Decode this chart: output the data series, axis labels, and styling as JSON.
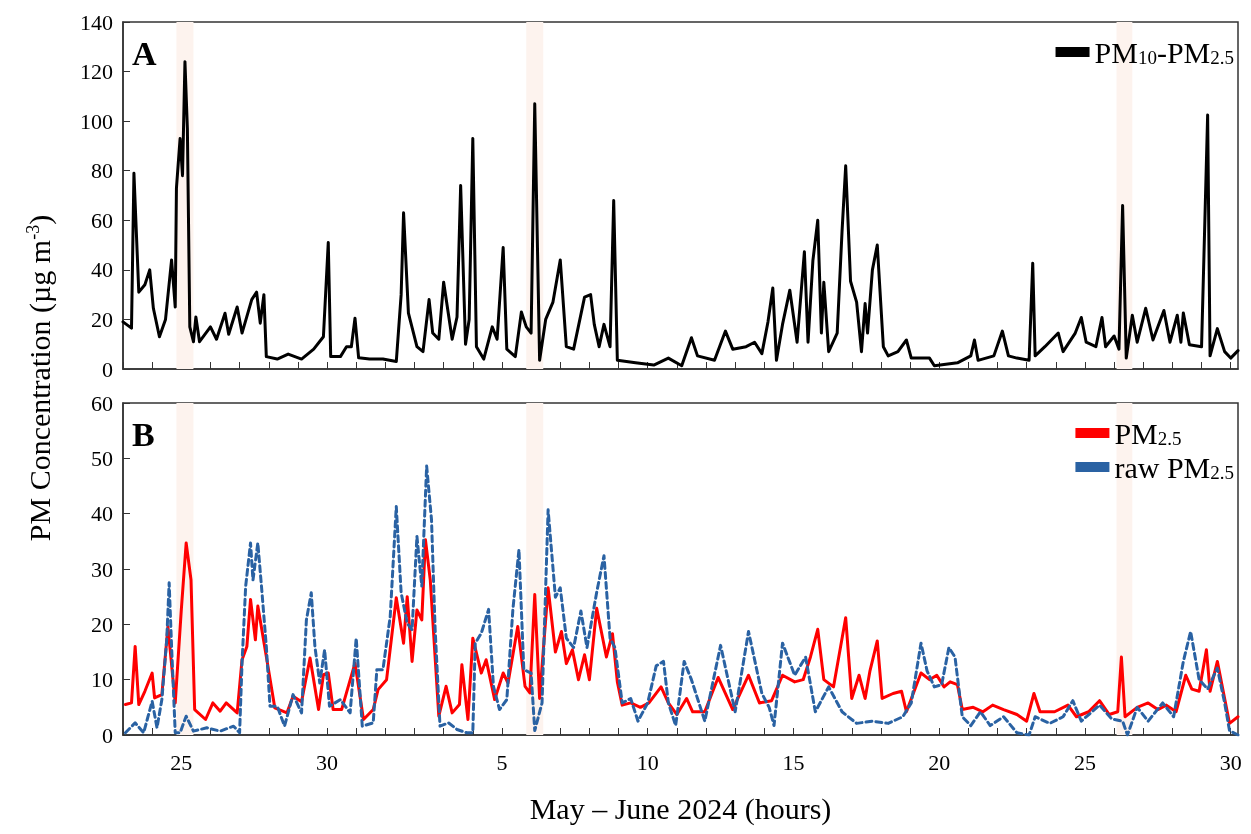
{
  "chart_data": [
    {
      "type": "line",
      "ylabel": "PM Concentration (µg m$^{-3}$)",
      "annotations": [
        "A"
      ],
      "xlim": [
        "2024-05-23T00:00",
        "2024-06-30T06:00"
      ],
      "ylim": [
        0,
        140
      ],
      "yticks": [
        0,
        20,
        40,
        60,
        80,
        100,
        120,
        140
      ],
      "xticks": [
        {
          "value": "2024-05-23",
          "label": null
        },
        {
          "value": "2024-05-24",
          "label": null
        },
        {
          "value": "2024-05-25",
          "label": null
        },
        {
          "value": "2024-05-26",
          "label": null
        },
        {
          "value": "2024-05-27",
          "label": null
        },
        {
          "value": "2024-05-28",
          "label": null
        },
        {
          "value": "2024-05-29",
          "label": null
        },
        {
          "value": "2024-05-30",
          "label": null
        },
        {
          "value": "2024-05-31",
          "label": null
        },
        {
          "value": "2024-06-01",
          "label": null
        },
        {
          "value": "2024-06-02",
          "label": null
        },
        {
          "value": "2024-06-03",
          "label": null
        },
        {
          "value": "2024-06-04",
          "label": null
        },
        {
          "value": "2024-06-05",
          "label": null
        },
        {
          "value": "2024-06-06",
          "label": null
        },
        {
          "value": "2024-06-07",
          "label": null
        },
        {
          "value": "2024-06-08",
          "label": null
        },
        {
          "value": "2024-06-09",
          "label": null
        },
        {
          "value": "2024-06-10",
          "label": null
        },
        {
          "value": "2024-06-11",
          "label": null
        },
        {
          "value": "2024-06-12",
          "label": null
        },
        {
          "value": "2024-06-13",
          "label": null
        },
        {
          "value": "2024-06-14",
          "label": null
        },
        {
          "value": "2024-06-15",
          "label": null
        },
        {
          "value": "2024-06-16",
          "label": null
        },
        {
          "value": "2024-06-17",
          "label": null
        },
        {
          "value": "2024-06-18",
          "label": null
        },
        {
          "value": "2024-06-19",
          "label": null
        },
        {
          "value": "2024-06-20",
          "label": null
        },
        {
          "value": "2024-06-21",
          "label": null
        },
        {
          "value": "2024-06-22",
          "label": null
        },
        {
          "value": "2024-06-23",
          "label": null
        },
        {
          "value": "2024-06-24",
          "label": null
        },
        {
          "value": "2024-06-25",
          "label": null
        },
        {
          "value": "2024-06-26",
          "label": null
        },
        {
          "value": "2024-06-27",
          "label": null
        },
        {
          "value": "2024-06-28",
          "label": null
        },
        {
          "value": "2024-06-29",
          "label": null
        },
        {
          "value": "2024-06-30",
          "label": null
        }
      ],
      "tick_labels": "y",
      "legend": "top right",
      "grid": false,
      "marker": "none",
      "line_style": "solid",
      "bands": [
        {
          "axis": "x",
          "from": "2024-05-24T20:00",
          "to": "2024-05-25T10:00",
          "color": "#fdf3ee"
        },
        {
          "axis": "x",
          "from": "2024-06-05T20:00",
          "to": "2024-06-06T10:00",
          "color": "#fdf3ee"
        },
        {
          "axis": "x",
          "from": "2024-06-26T02:00",
          "to": "2024-06-26T15:00",
          "color": "#fdf3ee"
        }
      ],
      "series": [
        {
          "name": "PM$_{10}$-PM$_{2.5}$",
          "color": "#000000",
          "x": [
            "2024-05-23T00:00",
            "2024-05-23T07:00",
            "2024-05-23T09:00",
            "2024-05-23T13:00",
            "2024-05-23T18:00",
            "2024-05-23T22:00",
            "2024-05-24T01:00",
            "2024-05-24T06:00",
            "2024-05-24T11:00",
            "2024-05-24T16:00",
            "2024-05-24T19:00",
            "2024-05-24T20:00",
            "2024-05-24T23:00",
            "2024-05-25T01:00",
            "2024-05-25T03:00",
            "2024-05-25T05:00",
            "2024-05-25T07:00",
            "2024-05-25T10:00",
            "2024-05-25T12:00",
            "2024-05-25T15:00",
            "2024-05-26T00:00",
            "2024-05-26T05:00",
            "2024-05-26T12:00",
            "2024-05-26T15:00",
            "2024-05-26T22:00",
            "2024-05-27T02:00",
            "2024-05-27T10:00",
            "2024-05-27T14:00",
            "2024-05-27T17:00",
            "2024-05-27T20:00",
            "2024-05-27T22:00",
            "2024-05-28T07:00",
            "2024-05-28T16:00",
            "2024-05-29T03:00",
            "2024-05-29T13:00",
            "2024-05-29T21:00",
            "2024-05-30T01:00",
            "2024-05-30T03:00",
            "2024-05-30T11:00",
            "2024-05-30T16:00",
            "2024-05-30T20:00",
            "2024-05-30T23:00",
            "2024-05-31T02:00",
            "2024-05-31T11:00",
            "2024-05-31T22:00",
            "2024-06-01T09:00",
            "2024-06-01T13:00",
            "2024-06-01T15:00",
            "2024-06-01T19:00",
            "2024-06-02T02:00",
            "2024-06-02T07:00",
            "2024-06-02T12:00",
            "2024-06-02T15:00",
            "2024-06-02T20:00",
            "2024-06-03T00:00",
            "2024-06-03T07:00",
            "2024-06-03T11:00",
            "2024-06-03T14:00",
            "2024-06-03T18:00",
            "2024-06-03T21:00",
            "2024-06-04T00:00",
            "2024-06-04T03:00",
            "2024-06-04T09:00",
            "2024-06-04T16:00",
            "2024-06-04T20:00",
            "2024-06-05T01:00",
            "2024-06-05T04:00",
            "2024-06-05T11:00",
            "2024-06-05T16:00",
            "2024-06-05T20:00",
            "2024-06-06T00:00",
            "2024-06-06T03:00",
            "2024-06-06T07:00",
            "2024-06-06T12:00",
            "2024-06-06T18:00",
            "2024-06-07T00:00",
            "2024-06-07T05:00",
            "2024-06-07T11:00",
            "2024-06-07T20:00",
            "2024-06-08T01:00",
            "2024-06-08T04:00",
            "2024-06-08T08:00",
            "2024-06-08T12:00",
            "2024-06-08T17:00",
            "2024-06-08T20:00",
            "2024-06-08T23:00",
            "2024-06-09T14:00",
            "2024-06-10T05:00",
            "2024-06-10T17:00",
            "2024-06-11T04:00",
            "2024-06-11T12:00",
            "2024-06-11T17:00",
            "2024-06-12T07:00",
            "2024-06-12T16:00",
            "2024-06-12T22:00",
            "2024-06-13T09:00",
            "2024-06-13T16:00",
            "2024-06-13T22:00",
            "2024-06-14T03:00",
            "2024-06-14T07:00",
            "2024-06-14T10:00",
            "2024-06-14T15:00",
            "2024-06-14T21:00",
            "2024-06-15T03:00",
            "2024-06-15T09:00",
            "2024-06-15T12:00",
            "2024-06-15T16:00",
            "2024-06-15T20:00",
            "2024-06-15T23:00",
            "2024-06-16T01:00",
            "2024-06-16T05:00",
            "2024-06-16T12:00",
            "2024-06-16T16:00",
            "2024-06-16T19:00",
            "2024-06-16T23:00",
            "2024-06-17T04:00",
            "2024-06-17T08:00",
            "2024-06-17T11:00",
            "2024-06-17T13:00",
            "2024-06-17T17:00",
            "2024-06-17T21:00",
            "2024-06-18T02:00",
            "2024-06-18T06:00",
            "2024-06-18T14:00",
            "2024-06-18T21:00",
            "2024-06-19T01:00",
            "2024-06-19T16:00",
            "2024-06-19T20:00",
            "2024-06-20T15:00",
            "2024-06-21T02:00",
            "2024-06-21T05:00",
            "2024-06-21T08:00",
            "2024-06-21T21:00",
            "2024-06-22T04:00",
            "2024-06-22T09:00",
            "2024-06-22T16:00",
            "2024-06-23T02:00",
            "2024-06-23T05:00",
            "2024-06-23T07:00",
            "2024-06-23T15:00",
            "2024-06-24T02:00",
            "2024-06-24T06:00",
            "2024-06-24T16:00",
            "2024-06-24T21:00",
            "2024-06-25T01:00",
            "2024-06-25T09:00",
            "2024-06-25T14:00",
            "2024-06-25T17:00",
            "2024-06-26T00:00",
            "2024-06-26T04:00",
            "2024-06-26T07:00",
            "2024-06-26T10:00",
            "2024-06-26T15:00",
            "2024-06-26T19:00",
            "2024-06-27T02:00",
            "2024-06-27T08:00",
            "2024-06-27T17:00",
            "2024-06-27T22:00",
            "2024-06-28T04:00",
            "2024-06-28T07:00",
            "2024-06-28T09:00",
            "2024-06-28T14:00",
            "2024-06-29T00:00",
            "2024-06-29T05:00",
            "2024-06-29T07:00",
            "2024-06-29T13:00",
            "2024-06-29T19:00",
            "2024-06-30T00:00",
            "2024-06-30T06:00"
          ],
          "values": [
            19,
            16.5,
            79,
            31,
            34,
            40,
            24.5,
            13,
            20,
            44,
            25,
            73,
            93,
            78,
            124,
            97,
            17,
            11,
            21,
            11,
            17,
            12,
            22.5,
            14,
            25,
            14.5,
            28,
            31,
            18.5,
            30,
            5,
            4,
            6,
            4,
            8,
            13,
            51,
            5,
            5,
            9,
            9,
            20.5,
            4.5,
            4,
            4,
            3,
            30,
            63,
            22.5,
            9,
            7,
            28,
            14.5,
            12,
            35,
            12,
            21,
            74,
            10,
            20,
            93,
            9,
            4,
            17,
            12,
            49,
            8,
            5,
            23,
            17,
            14.5,
            107,
            3.5,
            20,
            27,
            44,
            9,
            8,
            29,
            30,
            18,
            9,
            18,
            9,
            68,
            3.5,
            2.5,
            1.6,
            4.4,
            1.3,
            12.6,
            5.3,
            3.5,
            15.3,
            8,
            9,
            10.8,
            6.2,
            19,
            32.7,
            3.5,
            18,
            31.8,
            10.8,
            47.3,
            10.8,
            43.7,
            60,
            14.5,
            35,
            7,
            14.5,
            55.5,
            82,
            35.4,
            27,
            7,
            26.4,
            14.5,
            40,
            50,
            9,
            5.3,
            7,
            11.7,
            4.4,
            4.4,
            1.3,
            2.5,
            5.3,
            11.7,
            3.5,
            5.3,
            15.3,
            5.3,
            4.4,
            3.5,
            42.7,
            5.3,
            9,
            14.5,
            7,
            14.5,
            20.8,
            10.8,
            9,
            20.8,
            9,
            13.3,
            8,
            66,
            4.4,
            21.7,
            10.8,
            24.5,
            11.7,
            23.6,
            10.8,
            21.7,
            10.8,
            22.6,
            9.8,
            9,
            102.5,
            5.3,
            16.3,
            7,
            4.4,
            7.4
          ]
        }
      ]
    },
    {
      "type": "line",
      "xlabel": "May – June 2024 (hours)",
      "annotations": [
        "B"
      ],
      "xlim": [
        "2024-05-23T00:00",
        "2024-06-30T06:00"
      ],
      "ylim": [
        0,
        60
      ],
      "yticks": [
        0,
        10,
        20,
        30,
        40,
        50,
        60
      ],
      "xticks": [
        {
          "value": "2024-05-23",
          "label": null
        },
        {
          "value": "2024-05-24",
          "label": null
        },
        {
          "value": "2024-05-25",
          "label": "25"
        },
        {
          "value": "2024-05-26",
          "label": null
        },
        {
          "value": "2024-05-27",
          "label": null
        },
        {
          "value": "2024-05-28",
          "label": null
        },
        {
          "value": "2024-05-29",
          "label": null
        },
        {
          "value": "2024-05-30",
          "label": "30"
        },
        {
          "value": "2024-05-31",
          "label": null
        },
        {
          "value": "2024-06-01",
          "label": null
        },
        {
          "value": "2024-06-02",
          "label": null
        },
        {
          "value": "2024-06-03",
          "label": null
        },
        {
          "value": "2024-06-04",
          "label": null
        },
        {
          "value": "2024-06-05",
          "label": "5"
        },
        {
          "value": "2024-06-06",
          "label": null
        },
        {
          "value": "2024-06-07",
          "label": null
        },
        {
          "value": "2024-06-08",
          "label": null
        },
        {
          "value": "2024-06-09",
          "label": null
        },
        {
          "value": "2024-06-10",
          "label": "10"
        },
        {
          "value": "2024-06-11",
          "label": null
        },
        {
          "value": "2024-06-12",
          "label": null
        },
        {
          "value": "2024-06-13",
          "label": null
        },
        {
          "value": "2024-06-14",
          "label": null
        },
        {
          "value": "2024-06-15",
          "label": "15"
        },
        {
          "value": "2024-06-16",
          "label": null
        },
        {
          "value": "2024-06-17",
          "label": null
        },
        {
          "value": "2024-06-18",
          "label": null
        },
        {
          "value": "2024-06-19",
          "label": null
        },
        {
          "value": "2024-06-20",
          "label": "20"
        },
        {
          "value": "2024-06-21",
          "label": null
        },
        {
          "value": "2024-06-22",
          "label": null
        },
        {
          "value": "2024-06-23",
          "label": null
        },
        {
          "value": "2024-06-24",
          "label": null
        },
        {
          "value": "2024-06-25",
          "label": "25"
        },
        {
          "value": "2024-06-26",
          "label": null
        },
        {
          "value": "2024-06-27",
          "label": null
        },
        {
          "value": "2024-06-28",
          "label": null
        },
        {
          "value": "2024-06-29",
          "label": null
        },
        {
          "value": "2024-06-30",
          "label": "30"
        }
      ],
      "legend": "top right",
      "grid": false,
      "marker": "none",
      "bands": [
        {
          "axis": "x",
          "from": "2024-05-24T20:00",
          "to": "2024-05-25T10:00",
          "color": "#fdf3ee"
        },
        {
          "axis": "x",
          "from": "2024-06-05T20:00",
          "to": "2024-06-06T10:00",
          "color": "#fdf3ee"
        },
        {
          "axis": "x",
          "from": "2024-06-26T02:00",
          "to": "2024-06-26T15:00",
          "color": "#fdf3ee"
        }
      ],
      "series": [
        {
          "name": "PM$_{2.5}$",
          "color": "#ff0000",
          "line_style": "solid",
          "x": [
            "2024-05-23T02:00",
            "2024-05-23T07:00",
            "2024-05-23T10:00",
            "2024-05-23T13:00",
            "2024-05-23T18:00",
            "2024-05-24T00:00",
            "2024-05-24T02:00",
            "2024-05-24T08:00",
            "2024-05-24T13:00",
            "2024-05-24T19:00",
            "2024-05-25T00:00",
            "2024-05-25T04:00",
            "2024-05-25T08:00",
            "2024-05-25T11:00",
            "2024-05-25T20:00",
            "2024-05-26T02:00",
            "2024-05-26T08:00",
            "2024-05-26T13:00",
            "2024-05-26T22:00",
            "2024-05-27T02:00",
            "2024-05-27T06:00",
            "2024-05-27T09:00",
            "2024-05-27T13:00",
            "2024-05-27T15:00",
            "2024-05-27T22:00",
            "2024-05-28T05:00",
            "2024-05-28T15:00",
            "2024-05-28T20:00",
            "2024-05-29T03:00",
            "2024-05-29T10:00",
            "2024-05-29T17:00",
            "2024-05-29T21:00",
            "2024-05-30T01:00",
            "2024-05-30T05:00",
            "2024-05-30T12:00",
            "2024-05-30T23:00",
            "2024-05-31T06:00",
            "2024-05-31T14:00",
            "2024-05-31T18:00",
            "2024-06-01T01:00",
            "2024-06-01T09:00",
            "2024-06-01T15:00",
            "2024-06-01T18:00",
            "2024-06-01T22:00",
            "2024-06-02T02:00",
            "2024-06-02T06:00",
            "2024-06-02T09:00",
            "2024-06-02T13:00",
            "2024-06-02T20:00",
            "2024-06-03T02:00",
            "2024-06-03T07:00",
            "2024-06-03T13:00",
            "2024-06-03T15:00",
            "2024-06-03T20:00",
            "2024-06-04T00:00",
            "2024-06-04T07:00",
            "2024-06-04T11:00",
            "2024-06-04T18:00",
            "2024-06-05T01:00",
            "2024-06-05T05:00",
            "2024-06-05T13:00",
            "2024-06-05T19:00",
            "2024-06-05T23:00",
            "2024-06-06T03:00",
            "2024-06-06T07:00",
            "2024-06-06T14:00",
            "2024-06-06T20:00",
            "2024-06-07T01:00",
            "2024-06-07T05:00",
            "2024-06-07T10:00",
            "2024-06-07T15:00",
            "2024-06-07T20:00",
            "2024-06-08T00:00",
            "2024-06-08T06:00",
            "2024-06-08T14:00",
            "2024-06-08T19:00",
            "2024-06-08T23:00",
            "2024-06-09T03:00",
            "2024-06-09T10:00",
            "2024-06-09T18:00",
            "2024-06-10T01:00",
            "2024-06-10T11:00",
            "2024-06-10T17:00",
            "2024-06-11T00:00",
            "2024-06-11T08:00",
            "2024-06-11T13:00",
            "2024-06-11T23:00",
            "2024-06-12T10:00",
            "2024-06-12T22:00",
            "2024-06-13T11:00",
            "2024-06-13T20:00",
            "2024-06-14T06:00",
            "2024-06-14T15:00",
            "2024-06-15T01:00",
            "2024-06-15T08:00",
            "2024-06-15T14:00",
            "2024-06-15T20:00",
            "2024-06-16T01:00",
            "2024-06-16T09:00",
            "2024-06-16T19:00",
            "2024-06-17T00:00",
            "2024-06-17T06:00",
            "2024-06-17T11:00",
            "2024-06-17T15:00",
            "2024-06-17T21:00",
            "2024-06-18T01:00",
            "2024-06-18T10:00",
            "2024-06-18T17:00",
            "2024-06-18T21:00",
            "2024-06-19T09:00",
            "2024-06-19T16:00",
            "2024-06-19T22:00",
            "2024-06-20T04:00",
            "2024-06-20T09:00",
            "2024-06-20T15:00",
            "2024-06-20T19:00",
            "2024-06-21T04:00",
            "2024-06-21T12:00",
            "2024-06-21T20:00",
            "2024-06-22T05:00",
            "2024-06-22T16:00",
            "2024-06-23T00:00",
            "2024-06-23T06:00",
            "2024-06-23T11:00",
            "2024-06-23T23:00",
            "2024-06-24T10:00",
            "2024-06-24T17:00",
            "2024-06-25T03:00",
            "2024-06-25T12:00",
            "2024-06-25T20:00",
            "2024-06-26T03:00",
            "2024-06-26T06:00",
            "2024-06-26T09:00",
            "2024-06-26T19:00",
            "2024-06-27T04:00",
            "2024-06-27T12:00",
            "2024-06-27T19:00",
            "2024-06-28T03:00",
            "2024-06-28T11:00",
            "2024-06-28T16:00",
            "2024-06-28T22:00",
            "2024-06-29T04:00",
            "2024-06-29T07:00",
            "2024-06-29T13:00",
            "2024-06-29T19:00",
            "2024-06-29T23:00",
            "2024-06-30T06:00"
          ],
          "values": [
            5.5,
            5.8,
            16,
            5.5,
            7.9,
            11.2,
            6.7,
            7.3,
            19.6,
            5.8,
            22.6,
            34.7,
            28,
            4.6,
            2.8,
            5.8,
            4.3,
            5.8,
            4,
            13.6,
            16,
            24.5,
            17.2,
            23.3,
            14.2,
            4.9,
            4,
            7,
            6,
            13.9,
            4.6,
            10.9,
            11.2,
            4.6,
            4.6,
            13,
            2.8,
            4.6,
            8.2,
            10,
            24.8,
            16.6,
            25,
            13.3,
            22.6,
            20.8,
            35.3,
            28,
            3.4,
            8.8,
            4,
            5.5,
            12.7,
            2.8,
            17.5,
            11.2,
            13.6,
            6.4,
            11.2,
            9.4,
            19.6,
            8.8,
            7.6,
            25.4,
            6.6,
            26.6,
            15,
            18.7,
            12.9,
            15.4,
            10,
            14.5,
            10,
            22.9,
            14.1,
            18.3,
            9.6,
            5.4,
            5.8,
            5,
            5.8,
            8.7,
            5.8,
            3.7,
            6.6,
            4.2,
            4.2,
            10.4,
            4.6,
            10.8,
            5.8,
            6.2,
            10.8,
            9.6,
            10,
            14.1,
            19.1,
            10,
            8.7,
            21.2,
            6.6,
            10.8,
            6.6,
            11.6,
            17,
            6.6,
            7.5,
            7.9,
            4.2,
            11.2,
            10,
            10.8,
            8.7,
            9.6,
            9.1,
            4.6,
            5,
            4.2,
            5.4,
            4.6,
            3.7,
            2.5,
            7.5,
            4.2,
            4.2,
            5.4,
            3.3,
            4.2,
            6.2,
            3.7,
            4.2,
            14.1,
            3.3,
            5,
            5.8,
            4.6,
            5.4,
            4.2,
            10.8,
            8.3,
            7.9,
            15.4,
            7.9,
            13.3,
            6.6,
            2.1,
            3.3
          ]
        },
        {
          "name": "raw PM$_{2.5}$",
          "color": "#2a62a3",
          "line_style": "dashed",
          "x": [
            "2024-05-23T02:00",
            "2024-05-23T10:00",
            "2024-05-23T17:00",
            "2024-05-24T00:00",
            "2024-05-24T04:00",
            "2024-05-24T08:00",
            "2024-05-24T12:00",
            "2024-05-24T14:00",
            "2024-05-24T16:00",
            "2024-05-24T19:00",
            "2024-05-24T23:00",
            "2024-05-25T04:00",
            "2024-05-25T10:00",
            "2024-05-25T21:00",
            "2024-05-26T08:00",
            "2024-05-26T19:00",
            "2024-05-27T00:00",
            "2024-05-27T02:00",
            "2024-05-27T05:00",
            "2024-05-27T09:00",
            "2024-05-27T11:00",
            "2024-05-27T15:00",
            "2024-05-27T18:00",
            "2024-05-27T22:00",
            "2024-05-28T01:00",
            "2024-05-28T07:00",
            "2024-05-28T13:00",
            "2024-05-28T20:00",
            "2024-05-29T03:00",
            "2024-05-29T07:00",
            "2024-05-29T11:00",
            "2024-05-29T14:00",
            "2024-05-29T18:00",
            "2024-05-29T22:00",
            "2024-05-30T02:00",
            "2024-05-30T11:00",
            "2024-05-30T19:00",
            "2024-05-31T00:00",
            "2024-05-31T05:00",
            "2024-05-31T14:00",
            "2024-05-31T17:00",
            "2024-05-31T22:00",
            "2024-06-01T04:00",
            "2024-06-01T09:00",
            "2024-06-01T13:00",
            "2024-06-01T18:00",
            "2024-06-01T22:00",
            "2024-06-02T02:00",
            "2024-06-02T06:00",
            "2024-06-02T10:00",
            "2024-06-02T14:00",
            "2024-06-02T17:00",
            "2024-06-02T21:00",
            "2024-06-03T04:00",
            "2024-06-03T11:00",
            "2024-06-03T19:00",
            "2024-06-04T00:00",
            "2024-06-04T02:00",
            "2024-06-04T07:00",
            "2024-06-04T13:00",
            "2024-06-04T17:00",
            "2024-06-04T22:00",
            "2024-06-05T04:00",
            "2024-06-05T09:00",
            "2024-06-05T14:00",
            "2024-06-05T18:00",
            "2024-06-06T00:00",
            "2024-06-06T03:00",
            "2024-06-06T09:00",
            "2024-06-06T14:00",
            "2024-06-06T20:00",
            "2024-06-07T00:00",
            "2024-06-07T05:00",
            "2024-06-07T11:00",
            "2024-06-07T17:00",
            "2024-06-07T22:00",
            "2024-06-08T06:00",
            "2024-06-08T12:00",
            "2024-06-08T17:00",
            "2024-06-08T21:00",
            "2024-06-09T03:00",
            "2024-06-09T10:00",
            "2024-06-09T16:00",
            "2024-06-10T00:00",
            "2024-06-10T07:00",
            "2024-06-10T13:00",
            "2024-06-10T17:00",
            "2024-06-10T23:00",
            "2024-06-11T06:00",
            "2024-06-11T12:00",
            "2024-06-11T23:00",
            "2024-06-12T12:00",
            "2024-06-13T00:00",
            "2024-06-13T11:00",
            "2024-06-13T22:00",
            "2024-06-14T04:00",
            "2024-06-14T08:00",
            "2024-06-14T15:00",
            "2024-06-15T01:00",
            "2024-06-15T10:00",
            "2024-06-15T18:00",
            "2024-06-16T05:00",
            "2024-06-16T16:00",
            "2024-06-17T04:00",
            "2024-06-17T17:00",
            "2024-06-18T06:00",
            "2024-06-18T18:00",
            "2024-06-19T01:00",
            "2024-06-19T09:00",
            "2024-06-19T14:00",
            "2024-06-19T20:00",
            "2024-06-20T02:00",
            "2024-06-20T08:00",
            "2024-06-20T13:00",
            "2024-06-20T19:00",
            "2024-06-21T02:00",
            "2024-06-21T10:00",
            "2024-06-21T18:00",
            "2024-06-22T05:00",
            "2024-06-22T16:00",
            "2024-06-23T02:00",
            "2024-06-23T07:00",
            "2024-06-23T19:00",
            "2024-06-24T06:00",
            "2024-06-24T14:00",
            "2024-06-24T21:00",
            "2024-06-25T12:00",
            "2024-06-25T22:00",
            "2024-06-26T07:00",
            "2024-06-26T11:00",
            "2024-06-26T19:00",
            "2024-06-27T04:00",
            "2024-06-27T16:00",
            "2024-06-28T01:00",
            "2024-06-28T09:00",
            "2024-06-28T15:00",
            "2024-06-28T22:00",
            "2024-06-29T05:00",
            "2024-06-29T13:00",
            "2024-06-29T19:00",
            "2024-06-29T23:00",
            "2024-06-30T06:00"
          ],
          "values": [
            0.4,
            2.2,
            0.4,
            6.1,
            1.3,
            6.4,
            17.2,
            27.5,
            16,
            0.4,
            0.4,
            3.4,
            0.7,
            1.3,
            0.7,
            1.6,
            0.4,
            13,
            26.9,
            34.7,
            28,
            34.7,
            26.9,
            16,
            5.2,
            5.2,
            1.6,
            7.3,
            4,
            20.8,
            25.7,
            16,
            9.4,
            15.4,
            5.2,
            6.4,
            4,
            17.5,
            1.6,
            2.2,
            11.8,
            11.8,
            21.4,
            41.3,
            25.7,
            20.2,
            19,
            35.9,
            26.9,
            48.6,
            38.9,
            19,
            1.6,
            2.2,
            1,
            0.4,
            0.4,
            16.6,
            18.4,
            22.7,
            8.8,
            4.6,
            6.4,
            22.7,
            33.5,
            11.8,
            11.2,
            0.8,
            5.8,
            40.7,
            24.9,
            26.6,
            17.5,
            15.8,
            22.4,
            15.8,
            25.8,
            32.4,
            17.5,
            15.8,
            5.8,
            6.6,
            2.5,
            5.8,
            12.5,
            13.3,
            5.8,
            1.7,
            13.3,
            10,
            2.5,
            16.2,
            4.2,
            18.7,
            7.5,
            5,
            1.7,
            16.6,
            10.8,
            14.1,
            4.2,
            8.7,
            4.2,
            2.1,
            2.5,
            2.1,
            3.3,
            5.8,
            16.6,
            11.6,
            8.7,
            9.1,
            15.8,
            14.1,
            3.3,
            1.7,
            4.2,
            1.7,
            3.3,
            0.4,
            0,
            3.3,
            2.1,
            3.3,
            6.2,
            2.5,
            5.4,
            2.9,
            2.5,
            0,
            5,
            2.5,
            5.8,
            3.3,
            13.3,
            18.7,
            10,
            8.3,
            12.1,
            5.8,
            0.8,
            0
          ]
        }
      ]
    }
  ]
}
